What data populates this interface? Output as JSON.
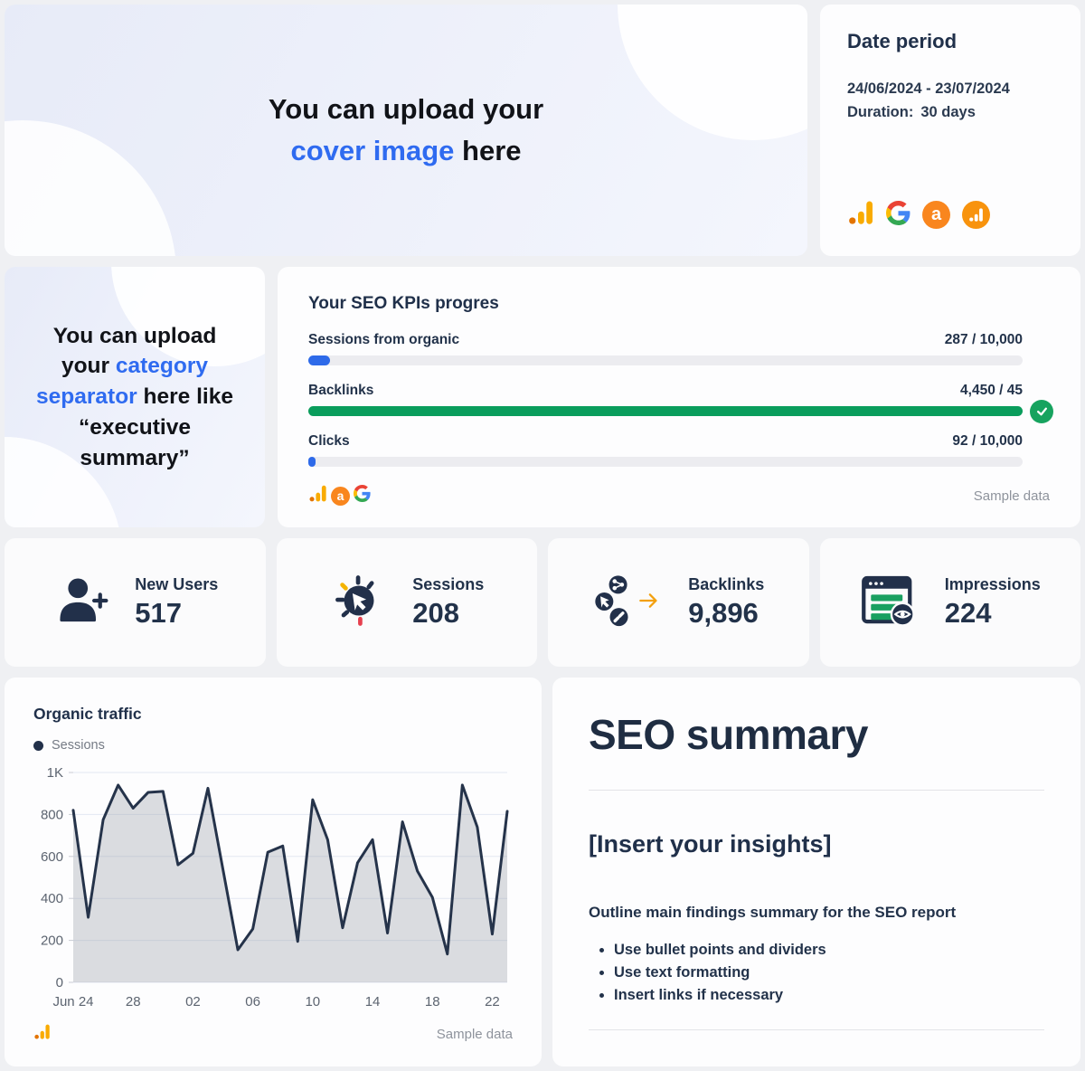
{
  "cover": {
    "line1": "You can upload your",
    "highlight": "cover image",
    "suffix": " here"
  },
  "date_period": {
    "title": "Date period",
    "range": "24/06/2024 - 23/07/2024",
    "duration_label": "Duration:",
    "duration_value": "30 days"
  },
  "separator": {
    "prefix": "You can upload your ",
    "highlight": "category separator",
    "suffix": " here like “executive summary”"
  },
  "kpis": {
    "title": "Your SEO KPIs progres",
    "rows": [
      {
        "label": "Sessions from organic",
        "value": "287 / 10,000",
        "percent": 3,
        "color": "blue",
        "complete": false
      },
      {
        "label": "Backlinks",
        "value": "4,450 / 45",
        "percent": 100,
        "color": "green",
        "complete": true
      },
      {
        "label": "Clicks",
        "value": "92 / 10,000",
        "percent": 1,
        "color": "blue",
        "complete": false
      }
    ],
    "sample_label": "Sample data"
  },
  "stats": [
    {
      "label": "New Users",
      "value": "517"
    },
    {
      "label": "Sessions",
      "value": "208"
    },
    {
      "label": "Backlinks",
      "value": "9,896"
    },
    {
      "label": "Impressions",
      "value": "224"
    }
  ],
  "organic": {
    "title": "Organic traffic",
    "legend": "Sessions",
    "sample_label": "Sample data"
  },
  "chart_data": {
    "type": "area",
    "title": "Organic traffic",
    "series_name": "Sessions",
    "x": [
      "Jun 24",
      "Jun 25",
      "Jun 26",
      "Jun 27",
      "Jun 28",
      "Jun 29",
      "Jun 30",
      "Jul 01",
      "Jul 02",
      "Jul 03",
      "Jul 04",
      "Jul 05",
      "Jul 06",
      "Jul 07",
      "Jul 08",
      "Jul 09",
      "Jul 10",
      "Jul 11",
      "Jul 12",
      "Jul 13",
      "Jul 14",
      "Jul 15",
      "Jul 16",
      "Jul 17",
      "Jul 18",
      "Jul 19",
      "Jul 20",
      "Jul 21",
      "Jul 22",
      "Jul 23"
    ],
    "values": [
      820,
      310,
      775,
      940,
      830,
      905,
      910,
      560,
      615,
      925,
      540,
      155,
      255,
      620,
      650,
      195,
      870,
      680,
      260,
      570,
      680,
      235,
      765,
      530,
      405,
      135,
      940,
      740,
      230,
      815
    ],
    "ylim": [
      0,
      1000
    ],
    "yticks": [
      {
        "v": 0,
        "label": "0"
      },
      {
        "v": 200,
        "label": "200"
      },
      {
        "v": 400,
        "label": "400"
      },
      {
        "v": 600,
        "label": "600"
      },
      {
        "v": 800,
        "label": "800"
      },
      {
        "v": 1000,
        "label": "1K"
      }
    ],
    "xtick_indices": [
      0,
      4,
      8,
      12,
      16,
      20,
      24,
      28
    ],
    "xtick_labels": [
      "Jun 24",
      "28",
      "02",
      "06",
      "10",
      "14",
      "18",
      "22"
    ],
    "grid": true,
    "legend_position": "top-left"
  },
  "summary": {
    "title": "SEO summary",
    "insights": "[Insert your insights]",
    "body": "Outline main findings summary for the SEO report",
    "bullets": [
      "Use bullet points and dividers",
      "Use text formatting",
      "Insert links if necessary"
    ]
  },
  "colors": {
    "blue": "#2e6ae9",
    "green": "#0a9d5c",
    "accent_text_blue": "#2f6bf0",
    "navy": "#22304a",
    "amber": "#f9ab00",
    "dark_orange": "#e37400",
    "ahrefs_orange": "#f9861e",
    "red": "#e6404f",
    "check_green": "#17a35f",
    "chart_line": "#25334a",
    "chart_fill": "rgba(152,158,170,0.35)"
  }
}
